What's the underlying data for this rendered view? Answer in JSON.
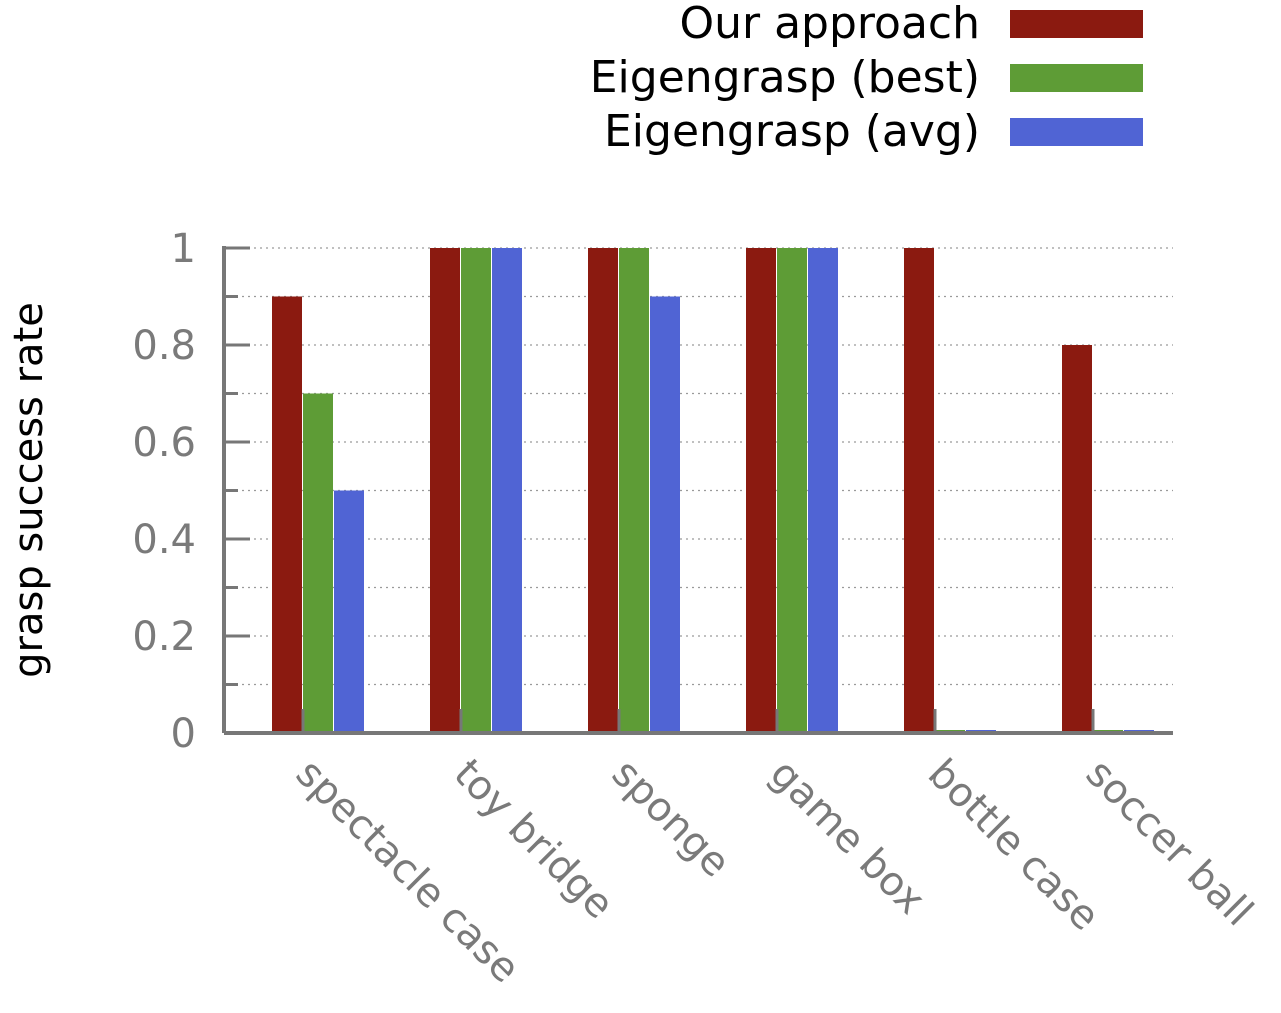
{
  "chart_data": {
    "type": "bar",
    "categories": [
      "spectacle case",
      "toy bridge",
      "sponge",
      "game box",
      "bottle case",
      "soccer ball"
    ],
    "series": [
      {
        "name": "Our approach",
        "color": "#8b1a10",
        "values": [
          0.9,
          1.0,
          1.0,
          1.0,
          1.0,
          0.8
        ]
      },
      {
        "name": "Eigengrasp (best)",
        "color": "#5e9c36",
        "values": [
          0.7,
          1.0,
          1.0,
          1.0,
          0.0,
          0.0
        ]
      },
      {
        "name": "Eigengrasp (avg)",
        "color": "#5064d4",
        "values": [
          0.5,
          1.0,
          0.9,
          1.0,
          0.0,
          0.0
        ]
      }
    ],
    "ylabel": "grasp success rate",
    "xlabel": "",
    "ylim": [
      0,
      1
    ],
    "yticks": [
      "0",
      "0.2",
      "0.4",
      "0.6",
      "0.8",
      "1"
    ],
    "grid": true,
    "legend_position": "top-right"
  }
}
